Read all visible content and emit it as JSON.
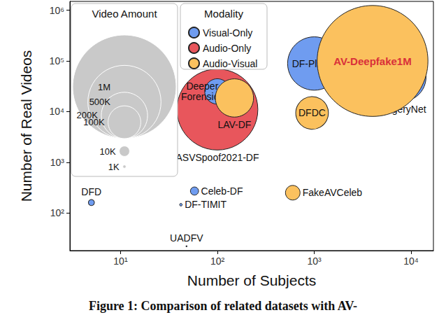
{
  "chart_data": {
    "type": "scatter",
    "caption": "Figure 1: Comparison of related datasets with AV-",
    "x_label": "Number of Subjects",
    "y_label": "Number of Real Videos",
    "log": true,
    "grid": false,
    "legend": "upper left",
    "legend_title": "Modality",
    "xlim": [
      3,
      17000
    ],
    "xticks": [
      {
        "value": 10,
        "label": "10¹"
      },
      {
        "value": 100,
        "label": "10²"
      },
      {
        "value": 1000,
        "label": "10³"
      },
      {
        "value": 10000,
        "label": "10⁴"
      }
    ],
    "ylim": [
      18,
      1500000
    ],
    "yticks": [
      {
        "value": 100,
        "label": "10²"
      },
      {
        "value": 1000,
        "label": "10³"
      },
      {
        "value": 10000,
        "label": "10⁴"
      },
      {
        "value": 100000,
        "label": "10⁵"
      },
      {
        "value": 1000000,
        "label": "10⁶"
      }
    ],
    "size_legend": {
      "title": "Video Amount",
      "values": [
        1000000,
        500000,
        200000,
        100000,
        10000,
        1000
      ],
      "labels": [
        "1M",
        "500K",
        "200K",
        "100K",
        "10K",
        "1K"
      ]
    },
    "series": [
      {
        "name": "Visual-Only",
        "color": "#6f9cf0",
        "labels": [
          "DFD",
          "Celeb-DF",
          "DF-TIMIT",
          "UADFV",
          "Deeper\nForensics",
          "DF-Platter",
          "ForgeryNet"
        ],
        "x": [
          5,
          58,
          42,
          48,
          100,
          1000,
          8000
        ],
        "y": [
          160,
          270,
          145,
          22,
          25000,
          89000,
          48000
        ],
        "size": [
          3431,
          6229,
          640,
          98,
          60000,
          265756,
          221247
        ]
      },
      {
        "name": "Audio-Only",
        "color": "#e8565c",
        "labels": [
          "ASVSpoof2021-DF"
        ],
        "x": [
          100
        ],
        "y": [
          11000
        ],
        "size": [
          611829
        ]
      },
      {
        "name": "Audio-Visual",
        "color": "#fbc15e",
        "labels": [
          "FakeAVCeleb",
          "LAV-DF",
          "DFDC",
          "AV-Deepfake1M"
        ],
        "x": [
          600,
          150,
          950,
          4000
        ],
        "y": [
          250,
          18600,
          9400,
          100000
        ],
        "size": [
          20000,
          136304,
          100000,
          1146760
        ]
      }
    ]
  }
}
